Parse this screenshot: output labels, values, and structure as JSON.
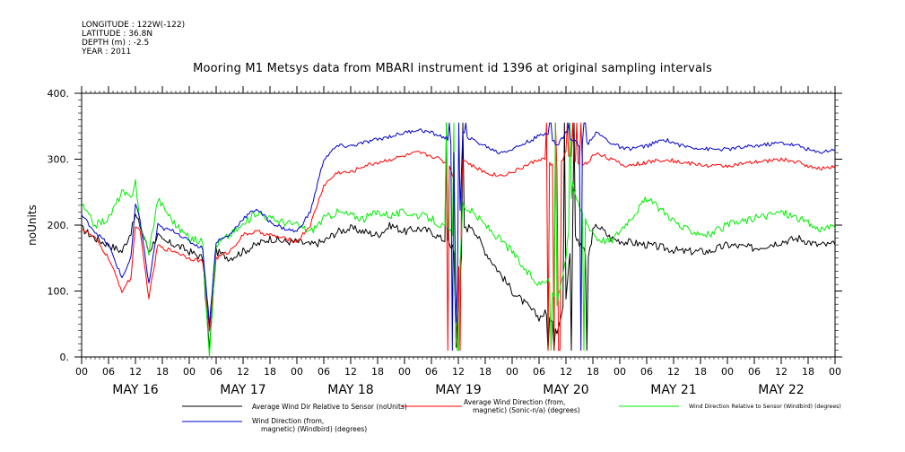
{
  "meta": {
    "longitude": "LONGITUDE : 122W(-122)",
    "latitude": "LATITUDE : 36.8N",
    "depth": "DEPTH (m) : -2.5",
    "year": "YEAR : 2011"
  },
  "title": "Mooring M1 Metsys data from MBARI instrument id 1396 at original sampling intervals",
  "chart_data": {
    "type": "line",
    "title": "Mooring M1 Metsys data from MBARI instrument id 1396 at original sampling intervals",
    "ylabel": "noUnits",
    "xlabel": "",
    "ylim": [
      0,
      400
    ],
    "yticks": [
      "0.",
      "100.",
      "200.",
      "300.",
      "400."
    ],
    "xlim_hours": [
      0,
      168
    ],
    "x_tick_labels": [
      "00",
      "06",
      "12",
      "18",
      "00",
      "06",
      "12",
      "18",
      "00",
      "06",
      "12",
      "18",
      "00",
      "06",
      "12",
      "18",
      "00",
      "06",
      "12",
      "18",
      "00",
      "06",
      "12",
      "18",
      "00",
      "06",
      "12",
      "18",
      "00"
    ],
    "day_labels": [
      "MAY 16",
      "MAY 17",
      "MAY 18",
      "MAY 19",
      "MAY 20",
      "MAY 21",
      "MAY 22"
    ],
    "grid": false,
    "legend_position": "bottom",
    "series": [
      {
        "name": "Average Wind Dir Relative to Sensor (noUnits)",
        "color": "#000000",
        "x": [
          0,
          3,
          6,
          9,
          11,
          12,
          13,
          15,
          17,
          18,
          21,
          24,
          27,
          28.5,
          30,
          33,
          36,
          39,
          42,
          45,
          48,
          51,
          54,
          57,
          60,
          63,
          66,
          69,
          72,
          75,
          78,
          80,
          82,
          83,
          83.5,
          85,
          87,
          90,
          93,
          96,
          99,
          102,
          104,
          106,
          108,
          109.5,
          111,
          113,
          114,
          115,
          118,
          121,
          126,
          130,
          134,
          140,
          144,
          150,
          156,
          160,
          164,
          168
        ],
        "y": [
          195,
          180,
          170,
          160,
          190,
          215,
          200,
          160,
          185,
          175,
          170,
          160,
          150,
          10,
          160,
          150,
          160,
          170,
          180,
          175,
          175,
          170,
          175,
          190,
          195,
          190,
          185,
          200,
          190,
          195,
          190,
          180,
          175,
          160,
          20,
          190,
          200,
          160,
          130,
          100,
          80,
          60,
          70,
          40,
          90,
          200,
          170,
          150,
          190,
          200,
          180,
          175,
          170,
          165,
          160,
          160,
          170,
          165,
          175,
          180,
          170,
          170
        ]
      },
      {
        "name": "Average Wind Direction (from, magnetic) (Sonic-n/a) (degrees)",
        "color": "#ff0000",
        "x": [
          0,
          3,
          6,
          9,
          11,
          12,
          13,
          15,
          17,
          18,
          21,
          24,
          27,
          28.5,
          30,
          33,
          36,
          39,
          42,
          45,
          48,
          51,
          54,
          57,
          60,
          63,
          66,
          69,
          72,
          75,
          78,
          80,
          82,
          83,
          83.5,
          85,
          87,
          90,
          93,
          96,
          99,
          102,
          104,
          106,
          108,
          109.5,
          111,
          113,
          114,
          115,
          118,
          121,
          126,
          130,
          134,
          140,
          144,
          150,
          156,
          160,
          164,
          168
        ],
        "y": [
          195,
          180,
          150,
          100,
          120,
          200,
          190,
          90,
          170,
          165,
          160,
          150,
          145,
          40,
          150,
          160,
          185,
          190,
          185,
          180,
          175,
          200,
          260,
          280,
          280,
          290,
          295,
          300,
          305,
          310,
          305,
          300,
          290,
          270,
          30,
          300,
          290,
          280,
          275,
          280,
          290,
          300,
          300,
          280,
          310,
          300,
          290,
          295,
          305,
          310,
          300,
          290,
          295,
          300,
          295,
          290,
          290,
          295,
          300,
          295,
          285,
          290
        ]
      },
      {
        "name": "Wind Direction Relative to Sensor (Windbird) (degrees)",
        "color": "#00ee00",
        "x": [
          0,
          3,
          6,
          9,
          11,
          12,
          13,
          15,
          17,
          18,
          21,
          24,
          27,
          28.5,
          30,
          33,
          36,
          39,
          42,
          45,
          48,
          51,
          54,
          57,
          60,
          63,
          66,
          69,
          72,
          75,
          78,
          80,
          82,
          83,
          83.5,
          85,
          87,
          90,
          93,
          96,
          99,
          102,
          104,
          106,
          108,
          109.5,
          111,
          113,
          114,
          115,
          118,
          121,
          126,
          130,
          134,
          140,
          144,
          150,
          156,
          160,
          164,
          168
        ],
        "y": [
          230,
          200,
          210,
          250,
          240,
          270,
          200,
          160,
          240,
          230,
          200,
          180,
          175,
          0,
          170,
          185,
          200,
          220,
          210,
          205,
          200,
          190,
          210,
          220,
          215,
          210,
          220,
          215,
          220,
          215,
          210,
          200,
          190,
          180,
          30,
          230,
          220,
          200,
          180,
          160,
          130,
          110,
          120,
          80,
          150,
          260,
          230,
          200,
          190,
          180,
          175,
          200,
          240,
          220,
          195,
          185,
          200,
          210,
          220,
          210,
          195,
          195
        ]
      },
      {
        "name": "Wind Direction (from, magnetic) (Windbird) (degrees)",
        "color": "#0000cc",
        "x": [
          0,
          3,
          6,
          9,
          11,
          12,
          13,
          15,
          17,
          18,
          21,
          24,
          27,
          28.5,
          30,
          33,
          36,
          39,
          42,
          45,
          48,
          51,
          54,
          57,
          60,
          63,
          66,
          69,
          72,
          75,
          78,
          80,
          82,
          83,
          83.5,
          85,
          87,
          90,
          93,
          96,
          99,
          102,
          104,
          106,
          108,
          109.5,
          111,
          113,
          114,
          115,
          118,
          121,
          126,
          130,
          134,
          140,
          144,
          150,
          156,
          160,
          164,
          168
        ],
        "y": [
          215,
          190,
          170,
          120,
          150,
          230,
          210,
          110,
          200,
          195,
          190,
          175,
          165,
          50,
          175,
          185,
          210,
          225,
          205,
          195,
          190,
          220,
          300,
          320,
          320,
          325,
          330,
          335,
          340,
          345,
          340,
          335,
          330,
          310,
          50,
          340,
          330,
          320,
          310,
          315,
          325,
          335,
          340,
          320,
          340,
          330,
          320,
          325,
          335,
          340,
          325,
          315,
          320,
          330,
          320,
          315,
          315,
          320,
          325,
          320,
          310,
          315
        ]
      }
    ],
    "legend": [
      {
        "line1": "Average Wind Dir Relative to Sensor (noUnits)",
        "line2": ""
      },
      {
        "line1": "Average Wind Direction (from,",
        "line2": "magnetic) (Sonic-n/a) (degrees)"
      },
      {
        "line1": "Wind Direction Relative to Sensor (Windbird) (degrees)",
        "line2": ""
      },
      {
        "line1": "Wind Direction (from,",
        "line2": "magnetic) (Windbird) (degrees)"
      }
    ]
  }
}
